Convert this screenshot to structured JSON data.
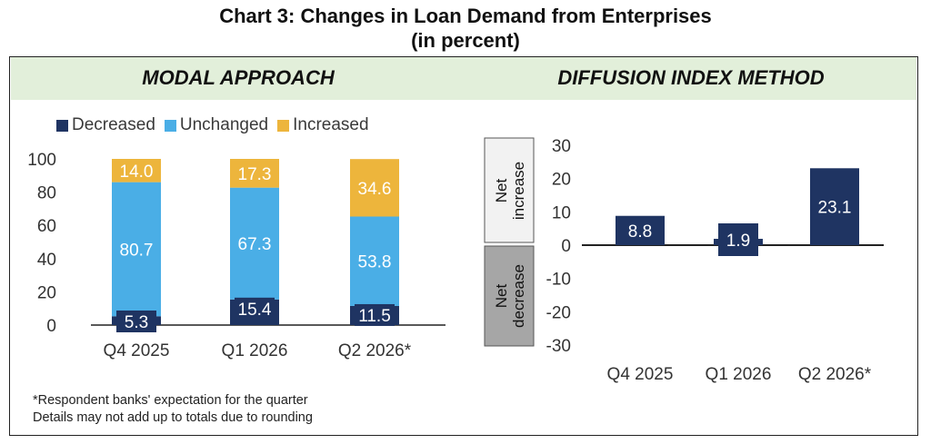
{
  "title_line1": "Chart 3: Changes in Loan Demand from Enterprises",
  "title_line2": "(in percent)",
  "notes": [
    "*Respondent banks' expectation for the quarter",
    "Details may not add up to totals due to rounding"
  ],
  "colors": {
    "decreased": "#1f3462",
    "unchanged": "#4aaee6",
    "increased": "#edb53c",
    "diffusion_bar": "#1f3462",
    "header_band": "#e2efda"
  },
  "chart_data": [
    {
      "type": "bar",
      "stacked": true,
      "title": "MODAL APPROACH",
      "categories": [
        "Q4 2025",
        "Q1 2026",
        "Q2 2026*"
      ],
      "series": [
        {
          "name": "Decreased",
          "values": [
            5.3,
            15.4,
            11.5
          ]
        },
        {
          "name": "Unchanged",
          "values": [
            80.7,
            67.3,
            53.8
          ]
        },
        {
          "name": "Increased",
          "values": [
            14.0,
            17.3,
            34.6
          ]
        }
      ],
      "data_labels": [
        [
          "5.3",
          "15.4",
          "11.5"
        ],
        [
          "80.7",
          "67.3",
          "53.8"
        ],
        [
          "14.0",
          "17.3",
          "34.6"
        ]
      ],
      "ylim": [
        0,
        100
      ],
      "yticks": [
        "0",
        "20",
        "40",
        "60",
        "80",
        "100"
      ],
      "legend_position": "top",
      "grid": false
    },
    {
      "type": "bar",
      "title": "DIFFUSION INDEX METHOD",
      "categories": [
        "Q4 2025",
        "Q1 2026",
        "Q2 2026*"
      ],
      "values": [
        8.8,
        1.9,
        23.1
      ],
      "data_labels": [
        "8.8",
        "1.9",
        "23.1"
      ],
      "ylim": [
        -30,
        30
      ],
      "yticks": [
        "30",
        "20",
        "10",
        "0",
        "-10",
        "-20",
        "-30"
      ],
      "side_labels": {
        "positive": [
          "Net",
          "increase"
        ],
        "negative": [
          "Net",
          "decrease"
        ]
      },
      "grid": false
    }
  ]
}
